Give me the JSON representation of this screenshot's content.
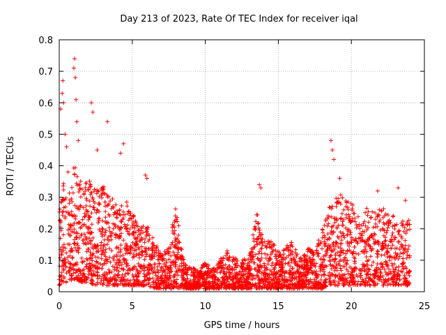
{
  "chart_data": {
    "type": "scatter",
    "title": "Day 213 of 2023, Rate Of TEC Index for receiver iqal",
    "xlabel": "GPS time / hours",
    "ylabel": "ROTI / TECUs",
    "xlim": [
      0,
      25
    ],
    "ylim": [
      0,
      0.8
    ],
    "xticks": [
      0,
      5,
      10,
      15,
      20,
      25
    ],
    "yticks": [
      0,
      0.1,
      0.2,
      0.3,
      0.4,
      0.5,
      0.6,
      0.7,
      0.8
    ],
    "xtick_labels": [
      "0",
      "5",
      "10",
      "15",
      "20",
      "25"
    ],
    "ytick_labels": [
      "0",
      "0.1",
      "0.2",
      "0.3",
      "0.4",
      "0.5",
      "0.6",
      "0.7",
      "0.8"
    ],
    "grid": true,
    "marker": "+",
    "color": "#ff0000",
    "envelope": {
      "x": [
        0.0,
        0.3,
        0.6,
        1.0,
        1.5,
        2.0,
        2.5,
        3.0,
        3.5,
        4.0,
        4.5,
        5.0,
        5.5,
        6.0,
        6.5,
        7.0,
        7.5,
        8.0,
        8.5,
        9.0,
        9.5,
        10.0,
        10.5,
        11.0,
        11.5,
        12.0,
        12.5,
        13.0,
        13.5,
        14.0,
        14.5,
        15.0,
        15.5,
        16.0,
        16.5,
        17.0,
        17.5,
        18.0,
        18.5,
        19.0,
        19.5,
        20.0,
        20.5,
        21.0,
        21.5,
        22.0,
        22.5,
        23.0,
        23.5,
        24.0
      ],
      "y_max": [
        0.25,
        0.35,
        0.3,
        0.4,
        0.33,
        0.35,
        0.32,
        0.33,
        0.3,
        0.27,
        0.3,
        0.25,
        0.2,
        0.22,
        0.15,
        0.12,
        0.14,
        0.27,
        0.1,
        0.08,
        0.07,
        0.09,
        0.07,
        0.1,
        0.13,
        0.11,
        0.1,
        0.11,
        0.25,
        0.15,
        0.17,
        0.12,
        0.14,
        0.16,
        0.1,
        0.14,
        0.13,
        0.2,
        0.27,
        0.3,
        0.3,
        0.27,
        0.24,
        0.26,
        0.25,
        0.27,
        0.24,
        0.23,
        0.22,
        0.23
      ],
      "y_min": [
        0.02,
        0.03,
        0.03,
        0.04,
        0.03,
        0.03,
        0.02,
        0.02,
        0.02,
        0.02,
        0.02,
        0.02,
        0.02,
        0.02,
        0.01,
        0.01,
        0.01,
        0.01,
        0.01,
        0.01,
        0.01,
        0.01,
        0.01,
        0.01,
        0.01,
        0.01,
        0.01,
        0.01,
        0.01,
        0.01,
        0.01,
        0.01,
        0.01,
        0.01,
        0.01,
        0.01,
        0.01,
        0.01,
        0.02,
        0.02,
        0.02,
        0.02,
        0.02,
        0.02,
        0.02,
        0.02,
        0.02,
        0.02,
        0.02,
        0.02
      ]
    },
    "outliers": {
      "x": [
        0.1,
        0.2,
        0.25,
        0.3,
        0.4,
        0.5,
        0.6,
        1.0,
        1.05,
        1.1,
        1.15,
        1.2,
        1.3,
        2.2,
        2.3,
        2.6,
        3.3,
        4.2,
        4.4,
        5.9,
        6.0,
        13.7,
        13.8,
        18.6,
        18.7,
        18.8,
        19.2,
        21.8,
        23.2,
        23.7
      ],
      "y": [
        0.58,
        0.63,
        0.67,
        0.6,
        0.5,
        0.46,
        0.38,
        0.71,
        0.74,
        0.68,
        0.61,
        0.54,
        0.48,
        0.6,
        0.57,
        0.45,
        0.54,
        0.44,
        0.47,
        0.37,
        0.36,
        0.34,
        0.33,
        0.48,
        0.45,
        0.42,
        0.36,
        0.32,
        0.33,
        0.29
      ]
    },
    "seed": 213,
    "samples_per_hour": 140
  }
}
